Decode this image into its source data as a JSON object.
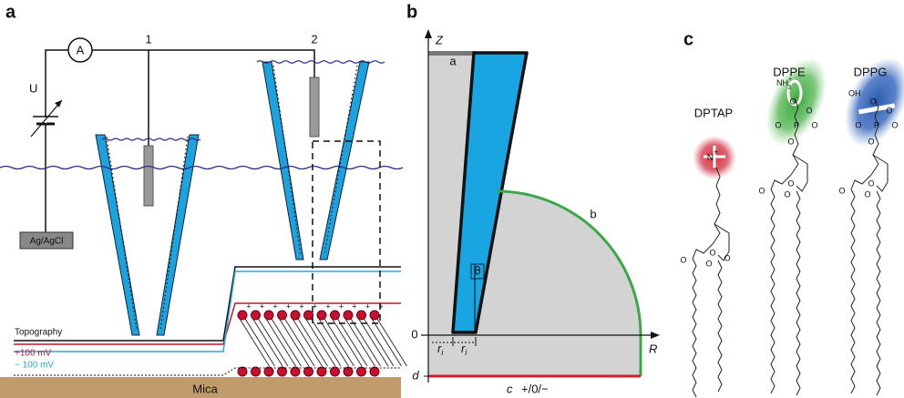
{
  "panel_a": {
    "label": "a",
    "ammeter": "A",
    "pipettes": [
      "1",
      "2"
    ],
    "voltage": "U",
    "electrode": "Ag/AgCl",
    "traces": [
      "Topography",
      "+100 mV",
      "− 100 mV"
    ],
    "substrate": "Mica",
    "charges": "+"
  },
  "panel_b": {
    "label": "b",
    "z_axis": "Z",
    "r_axis": "R",
    "origin": "0",
    "depth": "d",
    "region_a": "a",
    "region_b": "b",
    "angle": "θ",
    "radius": {
      "symbol": "r",
      "subscript": "i"
    },
    "boundary": "c",
    "charge": "+/0/−"
  },
  "panel_c": {
    "label": "c",
    "molecules": [
      {
        "name": "DPTAP",
        "head": "N",
        "charge": "+",
        "atoms": [
          "O",
          "O",
          "O",
          "O"
        ]
      },
      {
        "name": "DPPE",
        "head": {
          "base": "NH",
          "sub": "3",
          "sup": "+"
        },
        "atoms": [
          "O",
          "O",
          "P",
          "O",
          "O",
          "O",
          "O",
          "O",
          "O"
        ]
      },
      {
        "name": "DPPG",
        "head": "OH",
        "atoms": [
          "O",
          "O",
          "P",
          "O",
          "O",
          "O",
          "O",
          "O",
          "O"
        ]
      }
    ]
  }
}
